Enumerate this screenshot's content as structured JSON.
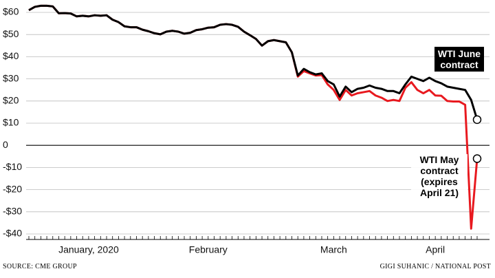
{
  "chart_data": {
    "type": "line",
    "source": "SOURCE: CME GROUP",
    "credit": "GIGI SUHANIC / NATIONAL POST",
    "categories": [
      null,
      null,
      null,
      null,
      null,
      null,
      null,
      null,
      null,
      null,
      "January, 2020",
      null,
      null,
      null,
      null,
      null,
      null,
      null,
      null,
      null,
      null,
      null,
      null,
      null,
      null,
      null,
      null,
      null,
      null,
      null,
      "February",
      null,
      null,
      null,
      null,
      null,
      null,
      null,
      null,
      null,
      null,
      null,
      null,
      null,
      null,
      null,
      null,
      null,
      null,
      null,
      null,
      "March",
      null,
      null,
      null,
      null,
      null,
      null,
      null,
      null,
      null,
      null,
      null,
      null,
      null,
      null,
      null,
      null,
      "April",
      null,
      null,
      null,
      null,
      null,
      null,
      null
    ],
    "series": [
      {
        "name": "WTI June contract",
        "color": "#000000",
        "values": [
          61,
          62.5,
          63,
          63,
          62.7,
          59.6,
          59.7,
          59.5,
          58.2,
          58.5,
          58.2,
          58.7,
          58.5,
          58.7,
          56.7,
          55.6,
          53.7,
          53.3,
          53.3,
          52.2,
          51.5,
          50.6,
          50.1,
          51.3,
          51.7,
          51.3,
          50.4,
          50.8,
          52,
          52.4,
          53.1,
          53.3,
          54.4,
          54.7,
          54.4,
          53.5,
          51.3,
          49.7,
          48,
          45,
          47,
          47.5,
          47,
          46.5,
          42,
          31.5,
          34.5,
          33,
          32,
          32.5,
          29,
          27.5,
          22,
          26.5,
          24,
          25.5,
          26,
          27,
          26,
          25.5,
          24.5,
          24.5,
          23.5,
          27.5,
          31,
          30,
          29,
          30.5,
          29,
          28,
          26.5,
          26,
          25.5,
          25,
          20.5,
          11.6
        ]
      },
      {
        "name": "WTI May contract (expires April 21)",
        "color": "#e8191f",
        "values": [
          61,
          62.5,
          63,
          63,
          62.7,
          59.6,
          59.7,
          59.5,
          58.2,
          58.5,
          58.2,
          58.7,
          58.5,
          58.7,
          56.7,
          55.6,
          53.7,
          53.3,
          53.3,
          52.2,
          51.5,
          50.6,
          50.1,
          51.3,
          51.7,
          51.3,
          50.4,
          50.8,
          52,
          52.4,
          53.1,
          53.3,
          54.4,
          54.7,
          54.4,
          53.5,
          51.3,
          49.7,
          48,
          45,
          47,
          47.5,
          47,
          46.5,
          42,
          31,
          33.5,
          32.5,
          31.5,
          31.7,
          27.5,
          25,
          20.5,
          25,
          22.5,
          23.5,
          24,
          24.5,
          22.5,
          21.5,
          20,
          20.5,
          20,
          26,
          28.5,
          25,
          23.5,
          25,
          22.5,
          22.4,
          20,
          19.8,
          19.8,
          18.3,
          -37.6,
          -6
        ]
      }
    ],
    "ylim": [
      -40,
      60
    ],
    "yticks": [
      {
        "value": -40,
        "label": "-$40"
      },
      {
        "value": -30,
        "label": "-$30"
      },
      {
        "value": -20,
        "label": "-$20"
      },
      {
        "value": -10,
        "label": "-$10"
      },
      0,
      {
        "value": 10,
        "label": "$10"
      },
      {
        "value": 20,
        "label": "$20"
      },
      {
        "value": 30,
        "label": "$30"
      },
      {
        "value": 40,
        "label": "$40"
      },
      {
        "value": 50,
        "label": "$50"
      },
      {
        "value": 60,
        "label": "$60"
      }
    ],
    "grid": true
  }
}
